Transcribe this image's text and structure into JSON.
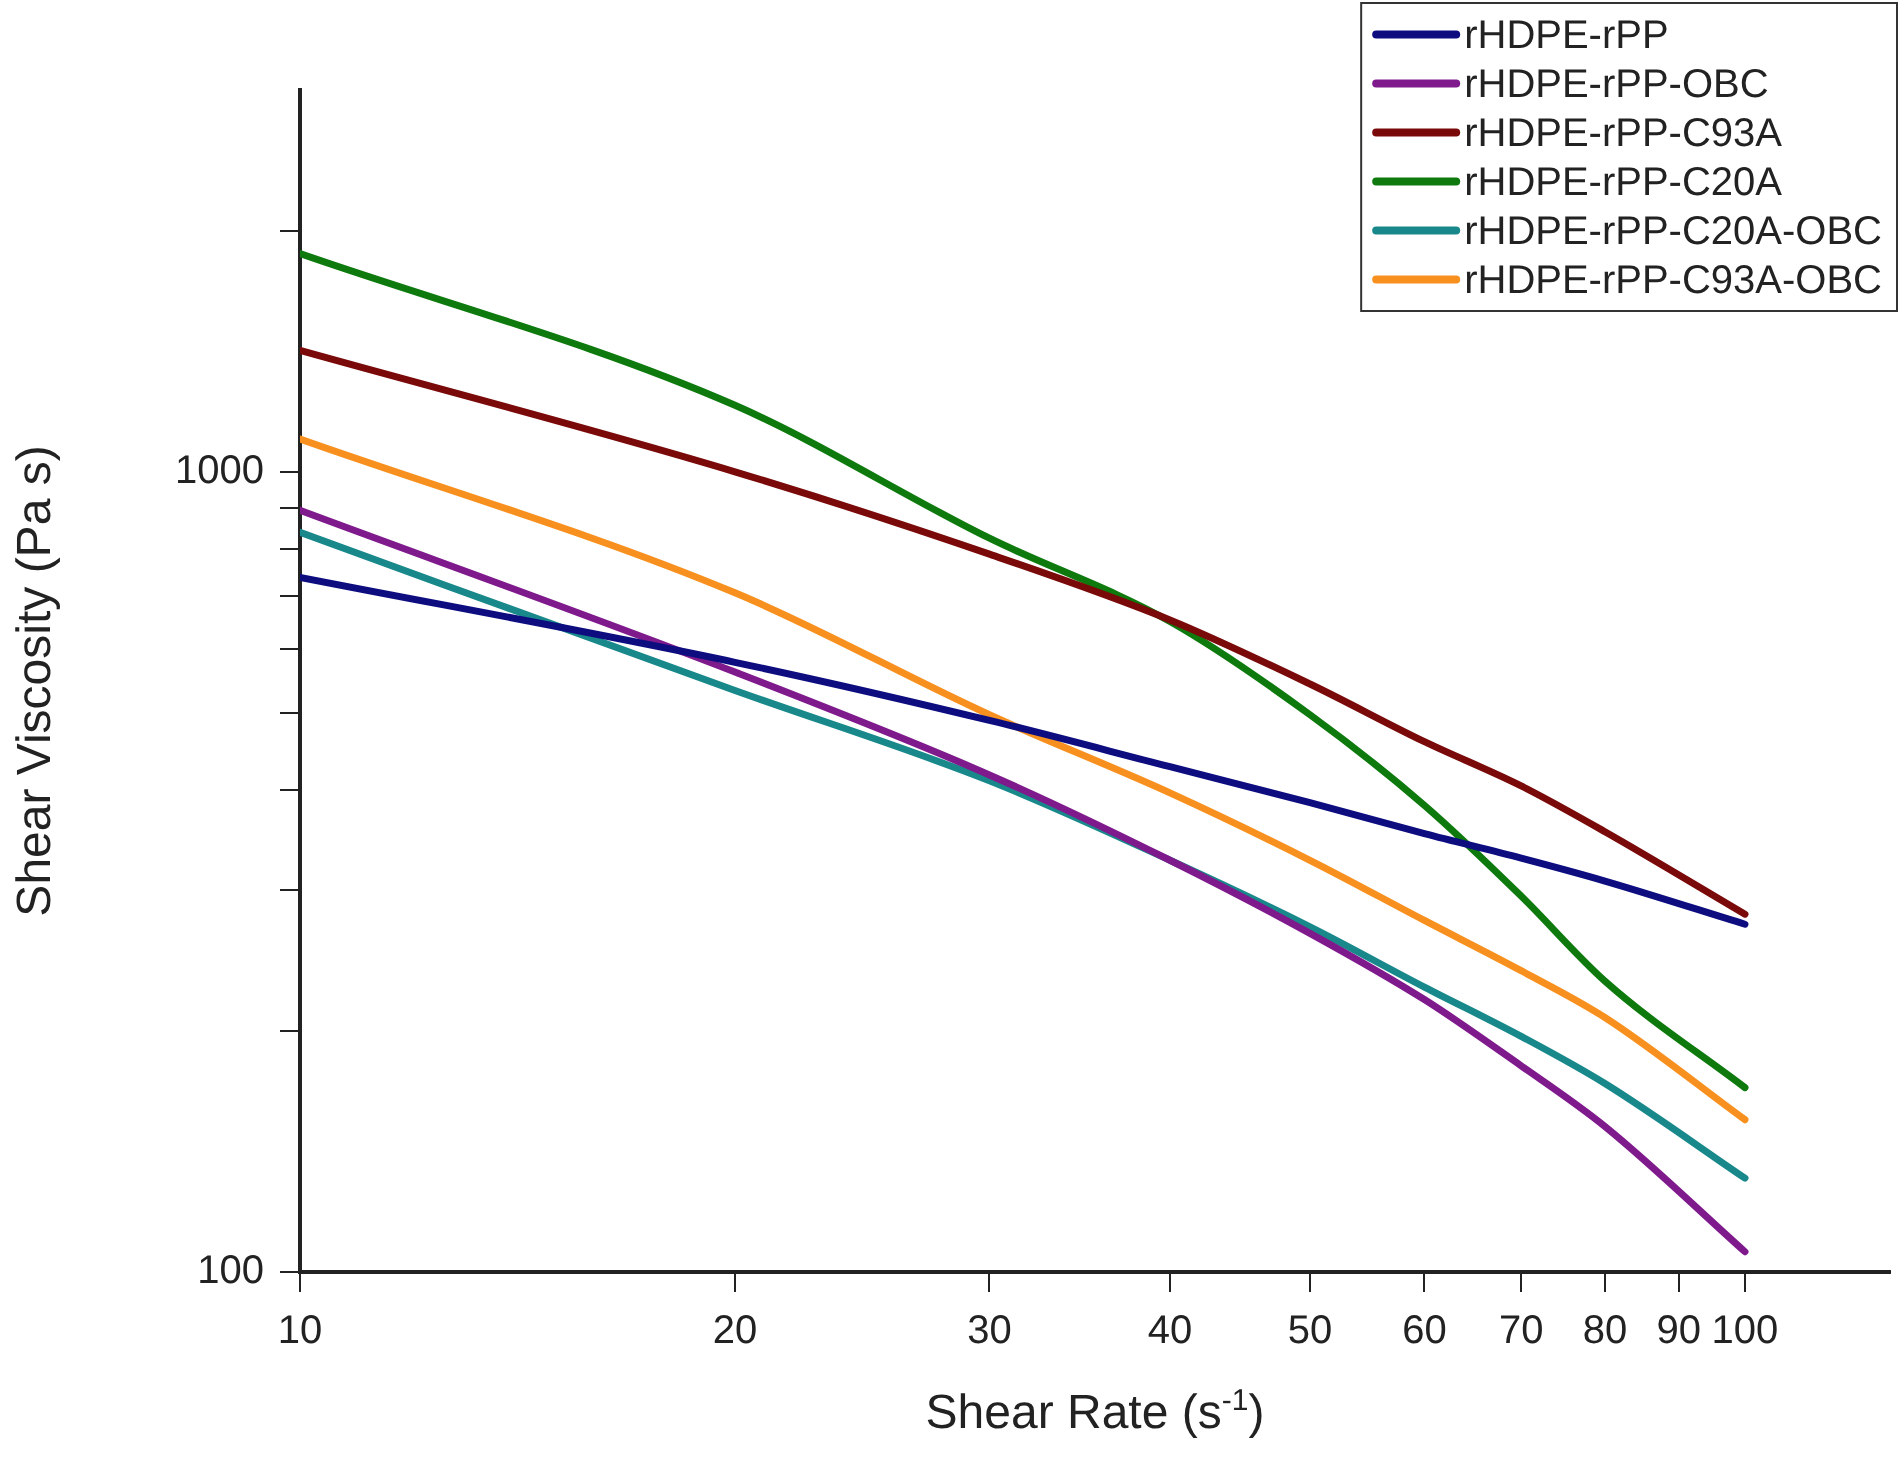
{
  "chart_data": {
    "type": "line",
    "xlabel": "Shear Rate (s$^{-1}$)",
    "ylabel": "Shear Viscosity (Pa s)",
    "log": "xy",
    "grid": false,
    "legend": "top right",
    "marker": "none",
    "line_style": "solid",
    "x": [
      10,
      20,
      30,
      40,
      50,
      60,
      70,
      80,
      100
    ],
    "xlim": [
      10,
      126
    ],
    "ylim": [
      100,
      3000
    ],
    "xticks": [
      10,
      20,
      30,
      40,
      50,
      60,
      70,
      80,
      90,
      100
    ],
    "yticks": [
      100,
      {
        "value": 200,
        "label": null
      },
      {
        "value": 300,
        "label": null
      },
      {
        "value": 400,
        "label": null
      },
      {
        "value": 500,
        "label": null
      },
      {
        "value": 600,
        "label": null
      },
      {
        "value": 700,
        "label": null
      },
      {
        "value": 800,
        "label": null
      },
      {
        "value": 900,
        "label": null
      },
      1000,
      {
        "value": 2000,
        "label": null
      }
    ],
    "series": [
      {
        "name": "rHDPE-rPP",
        "color": "#0d0d80",
        "values": [
          738,
          578,
          489,
          428,
          386,
          353,
          329,
          308,
          272
        ]
      },
      {
        "name": "rHDPE-rPP-OBC",
        "color": "#7f1a8c",
        "values": [
          895,
          562,
          418,
          327,
          265,
          219,
          181,
          152,
          106
        ]
      },
      {
        "name": "rHDPE-rPP-C93A",
        "color": "#7a0a0a",
        "values": [
          1418,
          1000,
          789,
          653,
          543,
          460,
          405,
          355,
          280
        ]
      },
      {
        "name": "rHDPE-rPP-C20A",
        "color": "#0e7a0e",
        "values": [
          1874,
          1211,
          826,
          650,
          497,
          383,
          295,
          231,
          170
        ]
      },
      {
        "name": "rHDPE-rPP-C20A-OBC",
        "color": "#18888a",
        "values": [
          840,
          533,
          411,
          327,
          270,
          227,
          197,
          172,
          131
        ]
      },
      {
        "name": "rHDPE-rPP-C93A-OBC",
        "color": "#f7901e",
        "values": [
          1099,
          706,
          497,
          397,
          327,
          275,
          238,
          208,
          155
        ]
      }
    ]
  }
}
